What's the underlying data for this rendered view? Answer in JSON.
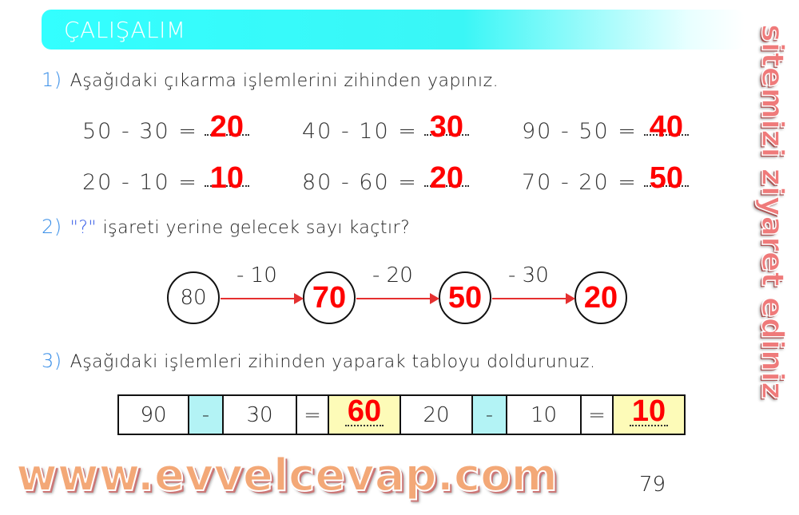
{
  "header": {
    "title": "ÇALIŞALIM"
  },
  "q1": {
    "number": "1)",
    "text": "Aşağıdaki çıkarma işlemlerini zihinden yapınız.",
    "items": [
      {
        "expr": "50 - 30 =",
        "answer": "20"
      },
      {
        "expr": "40 - 10 =",
        "answer": "30"
      },
      {
        "expr": "90 - 50 =",
        "answer": "40"
      },
      {
        "expr": "20 - 10 =",
        "answer": "10"
      },
      {
        "expr": "80 - 60 =",
        "answer": "20"
      },
      {
        "expr": "70 - 20 =",
        "answer": "50"
      }
    ]
  },
  "q2": {
    "number": "2)",
    "mark": "\"?\"",
    "text": "işareti yerine gelecek sayı kaçtır?",
    "start": "80",
    "steps": [
      "- 10",
      "- 20",
      "- 30"
    ],
    "answers": [
      "70",
      "50",
      "20"
    ]
  },
  "q3": {
    "number": "3)",
    "text": "Aşağıdaki işlemleri zihinden yaparak tabloyu doldurunuz.",
    "row": [
      {
        "a": "90",
        "op": "-",
        "b": "30",
        "eq": "=",
        "answer": "60"
      },
      {
        "a": "20",
        "op": "-",
        "b": "10",
        "eq": "=",
        "answer": "10"
      }
    ]
  },
  "page_number": "79",
  "watermark": {
    "line1": "www.evvelcevap.com",
    "line2": "sitemizi ziyaret ediniz"
  }
}
